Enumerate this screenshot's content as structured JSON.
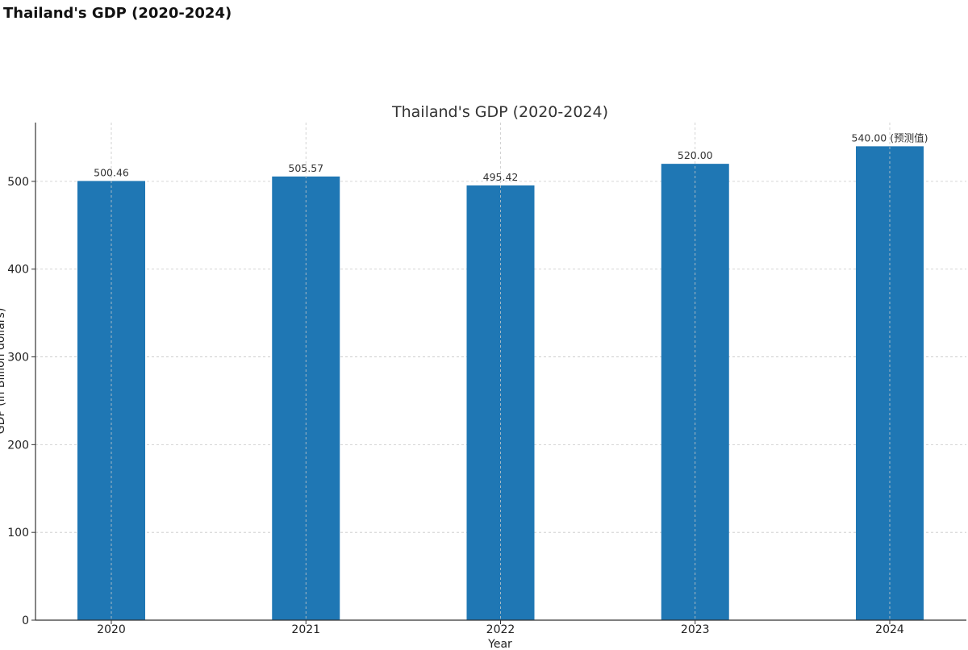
{
  "page": {
    "heading": "Thailand's GDP (2020-2024)"
  },
  "colors": {
    "bar": "#1f77b4",
    "grid": "#c8c8c8",
    "axis": "#333333"
  },
  "chart_data": {
    "type": "bar",
    "title": "Thailand's GDP (2020-2024)",
    "xlabel": "Year",
    "ylabel": "GDP (in Billion dollars)",
    "categories": [
      "2020",
      "2021",
      "2022",
      "2023",
      "2024"
    ],
    "values": [
      500.46,
      505.57,
      495.42,
      520.0,
      540.0
    ],
    "data_labels": [
      "500.46",
      "505.57",
      "495.42",
      "520.00",
      "540.00 (预测值)"
    ],
    "ylim": [
      0,
      567
    ],
    "yticks": [
      0,
      100,
      200,
      300,
      400,
      500
    ],
    "grid": true
  }
}
